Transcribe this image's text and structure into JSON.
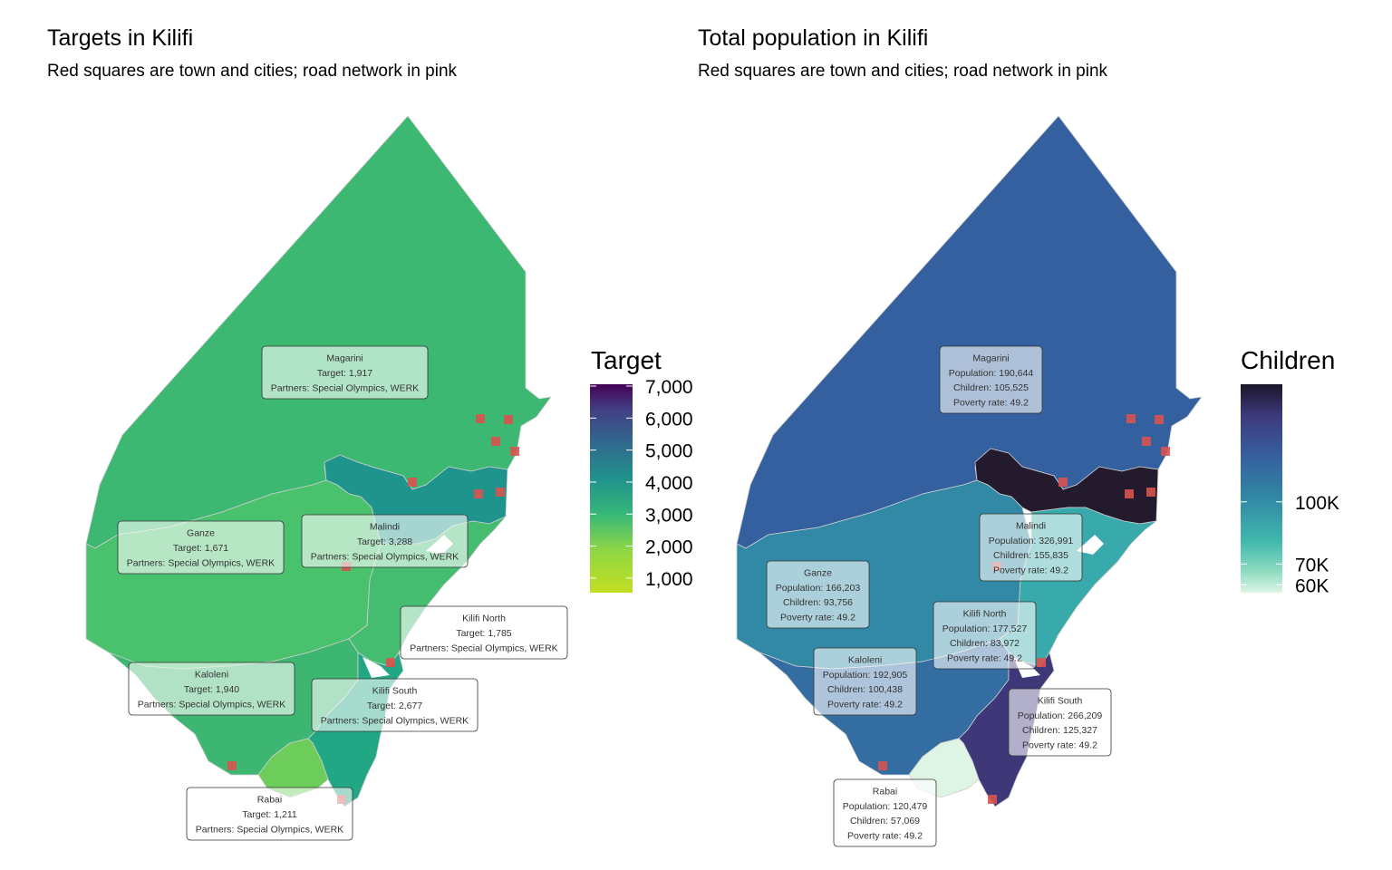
{
  "left_panel": {
    "title": "Targets in Kilifi",
    "subtitle": "Red squares are town and cities; road network in pink",
    "legend": {
      "title": "Target",
      "ticks": [
        "7,000",
        "6,000",
        "5,000",
        "4,000",
        "3,000",
        "2,000",
        "1,000"
      ],
      "tick_values": [
        7000,
        6000,
        5000,
        4000,
        3000,
        2000,
        1000
      ],
      "range": [
        600,
        7000
      ],
      "colormap": "viridis (reversed)"
    },
    "regions": [
      {
        "name": "Magarini",
        "lines": [
          "Magarini",
          "Target: 1,917",
          "Partners: Special Olympics, WERK"
        ],
        "target": 1917,
        "fill": "#3cb873"
      },
      {
        "name": "Ganze",
        "lines": [
          "Ganze",
          "Target: 1,671",
          "Partners: Special Olympics, WERK"
        ],
        "target": 1671,
        "fill": "#4ac16d"
      },
      {
        "name": "Malindi",
        "lines": [
          "Malindi",
          "Target: 3,288",
          "Partners: Special Olympics, WERK"
        ],
        "target": 3288,
        "fill": "#1f948c"
      },
      {
        "name": "Kilifi North",
        "lines": [
          "Kilifi North",
          "Target: 1,785",
          "Partners: Special Olympics, WERK"
        ],
        "target": 1785,
        "fill": "#44bd70"
      },
      {
        "name": "Kaloleni",
        "lines": [
          "Kaloleni",
          "Target: 1,940",
          "Partners: Special Olympics, WERK"
        ],
        "target": 1940,
        "fill": "#3db672"
      },
      {
        "name": "Kilifi South",
        "lines": [
          "Kilifi South",
          "Target: 2,677",
          "Partners: Special Olympics, WERK"
        ],
        "target": 2677,
        "fill": "#22a785"
      },
      {
        "name": "Rabai",
        "lines": [
          "Rabai",
          "Target: 1,211",
          "Partners: Special Olympics, WERK"
        ],
        "target": 1211,
        "fill": "#6ccd5a"
      }
    ]
  },
  "right_panel": {
    "title": "Total population in Kilifi",
    "subtitle": "Red squares are town and cities; road network in pink",
    "legend": {
      "title": "Children",
      "ticks": [
        "100K",
        "70K",
        "60K"
      ],
      "tick_values": [
        100000,
        70000,
        60000
      ],
      "range": [
        57069,
        155835
      ],
      "colormap": "mako (reversed)"
    },
    "regions": [
      {
        "name": "Magarini",
        "lines": [
          "Magarini",
          "Population: 190,644",
          "Children: 105,525",
          "Poverty rate: 49.2"
        ],
        "population": 190644,
        "children": 105525,
        "poverty_rate": 49.2,
        "fill": "#35609f"
      },
      {
        "name": "Ganze",
        "lines": [
          "Ganze",
          "Population: 166,203",
          "Children: 93,756",
          "Poverty rate: 49.2"
        ],
        "population": 166203,
        "children": 93756,
        "poverty_rate": 49.2,
        "fill": "#3189a5"
      },
      {
        "name": "Malindi",
        "lines": [
          "Malindi",
          "Population: 326,991",
          "Children: 155,835",
          "Poverty rate: 49.2"
        ],
        "population": 326991,
        "children": 155835,
        "poverty_rate": 49.2,
        "fill": "#241a2e"
      },
      {
        "name": "Kilifi North",
        "lines": [
          "Kilifi North",
          "Population: 177,527",
          "Children: 83,972",
          "Poverty rate: 49.2"
        ],
        "population": 177527,
        "children": 83972,
        "poverty_rate": 49.2,
        "fill": "#38aaac"
      },
      {
        "name": "Kaloleni",
        "lines": [
          "Kaloleni",
          "Population: 192,905",
          "Children: 100,438",
          "Poverty rate: 49.2"
        ],
        "population": 192905,
        "children": 100438,
        "poverty_rate": 49.2,
        "fill": "#336da2"
      },
      {
        "name": "Kilifi South",
        "lines": [
          "Kilifi South",
          "Population: 266,209",
          "Children: 125,327",
          "Poverty rate: 49.2"
        ],
        "population": 266209,
        "children": 125327,
        "poverty_rate": 49.2,
        "fill": "#3e3879"
      },
      {
        "name": "Rabai",
        "lines": [
          "Rabai",
          "Population: 120,479",
          "Children: 57,069",
          "Poverty rate: 49.2"
        ],
        "population": 120479,
        "children": 57069,
        "poverty_rate": 49.2,
        "fill": "#def5e5"
      }
    ]
  },
  "colors": {
    "town_marker": "#d9534f",
    "label_box_fill": "#ffffff",
    "label_box_border": "#333333",
    "region_border": "#cfcfcf"
  }
}
